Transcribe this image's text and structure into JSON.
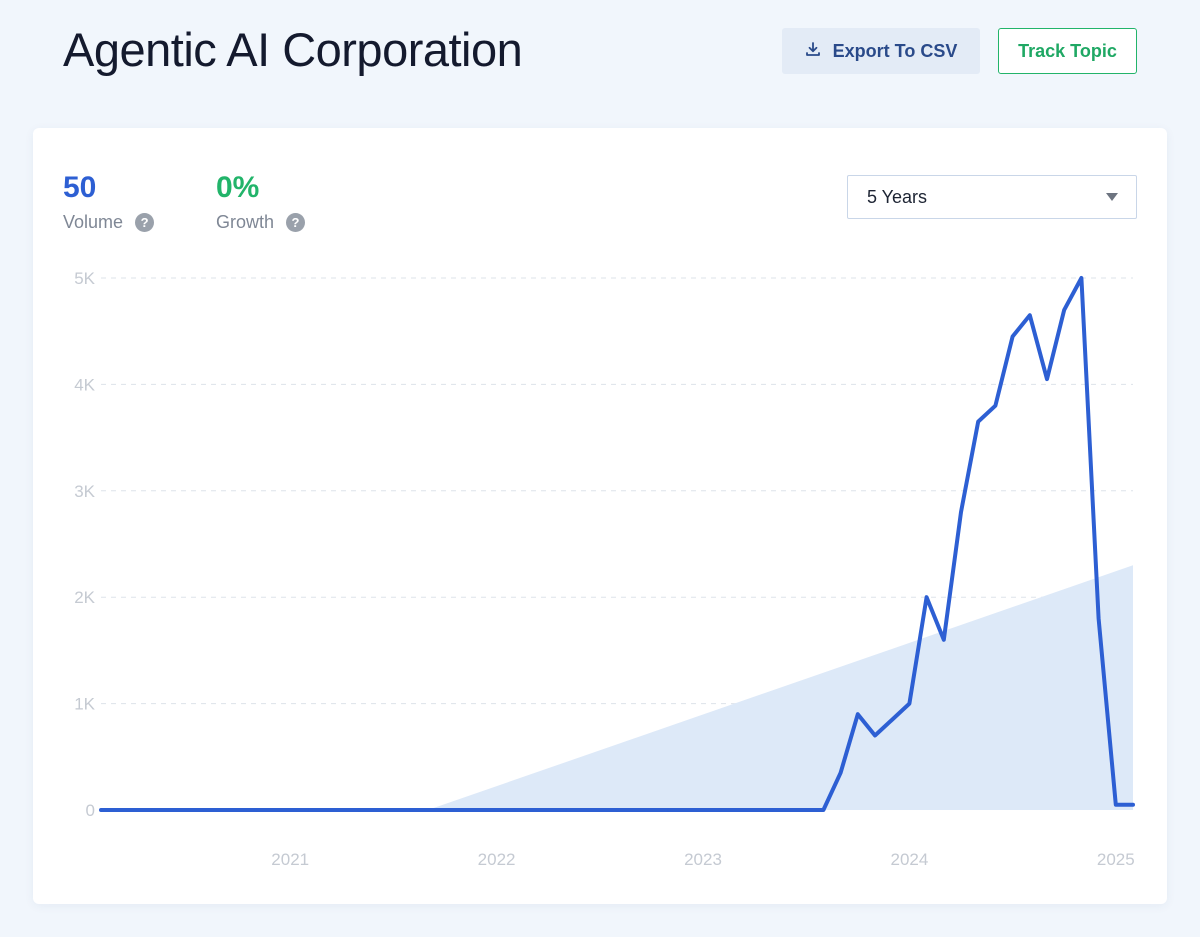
{
  "header": {
    "title": "Agentic AI Corporation",
    "export_label": "Export To CSV",
    "track_label": "Track Topic"
  },
  "metrics": {
    "volume": {
      "value": "50",
      "label": "Volume",
      "color": "#2d5fd3"
    },
    "growth": {
      "value": "0%",
      "label": "Growth",
      "color": "#22b46a"
    },
    "help_icon": "?"
  },
  "range_select": {
    "selected": "5 Years"
  },
  "chart_data": {
    "type": "line",
    "title": "",
    "xlabel": "",
    "ylabel": "",
    "x_ticks": [
      "2021",
      "2022",
      "2023",
      "2024",
      "2025"
    ],
    "y_ticks": [
      "0",
      "1K",
      "2K",
      "3K",
      "4K",
      "5K"
    ],
    "xlim": [
      "2020-08",
      "2025-08"
    ],
    "ylim": [
      0,
      5000
    ],
    "grid": true,
    "series": [
      {
        "color": "#2d5fd3",
        "x": [
          "2020-08",
          "2020-11",
          "2021-02",
          "2021-05",
          "2021-08",
          "2021-11",
          "2022-02",
          "2022-05",
          "2022-08",
          "2022-11",
          "2023-02",
          "2023-05",
          "2023-08",
          "2023-11",
          "2024-02",
          "2024-03",
          "2024-04",
          "2024-05",
          "2024-06",
          "2024-07",
          "2024-08",
          "2024-09",
          "2024-10",
          "2024-11",
          "2024-12",
          "2025-01",
          "2025-02",
          "2025-03",
          "2025-04",
          "2025-05",
          "2025-06",
          "2025-07",
          "2025-08"
        ],
        "values": [
          0,
          0,
          0,
          0,
          0,
          0,
          0,
          0,
          0,
          0,
          0,
          0,
          0,
          0,
          0,
          350,
          900,
          700,
          850,
          1000,
          2000,
          1600,
          2800,
          3650,
          3800,
          4450,
          4650,
          4050,
          4700,
          5000,
          1800,
          50,
          50
        ]
      }
    ],
    "trend": {
      "color": "#dde9f8",
      "x": [
        "2022-03",
        "2025-08"
      ],
      "values": [
        0,
        2300
      ]
    }
  }
}
